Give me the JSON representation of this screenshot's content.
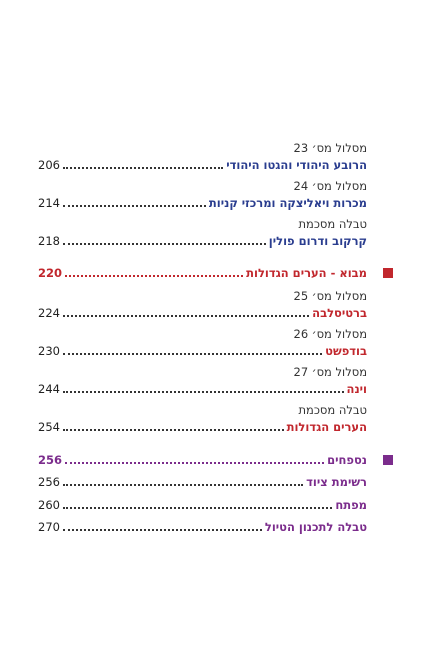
{
  "sections": [
    {
      "entries": [
        {
          "label": "מסלול מס׳ 23",
          "title": "הרובע היהודי והגטו היהודי",
          "page": 206
        },
        {
          "label": "מסלול מס׳ 24",
          "title": "מכרות ויאליצקה ומרכזי קניות",
          "page": 214
        },
        {
          "label": "טבלה מסכמת",
          "title": "קרקוב ודרום פולין",
          "page": 218
        }
      ]
    },
    {
      "heading": {
        "title": "מבוא - הערים הגדולות",
        "page": 220
      },
      "entries": [
        {
          "label": "מסלול מס׳ 25",
          "title": "ברטיסלבה",
          "page": 224
        },
        {
          "label": "מסלול מס׳ 26",
          "title": "בודפשט",
          "page": 230
        },
        {
          "label": "מסלול מס׳ 27",
          "title": "וינה",
          "page": 244
        },
        {
          "label": "טבלה מסכמת",
          "title": "הערים הגדולות",
          "page": 254
        }
      ]
    },
    {
      "heading": {
        "title": "נספחים",
        "page": 256
      },
      "entries": [
        {
          "title": "רשימת ציוד",
          "page": 256
        },
        {
          "title": "מפתח",
          "page": 260
        },
        {
          "title": "טבלה לתכנון הטיול",
          "page": 270
        }
      ]
    }
  ]
}
